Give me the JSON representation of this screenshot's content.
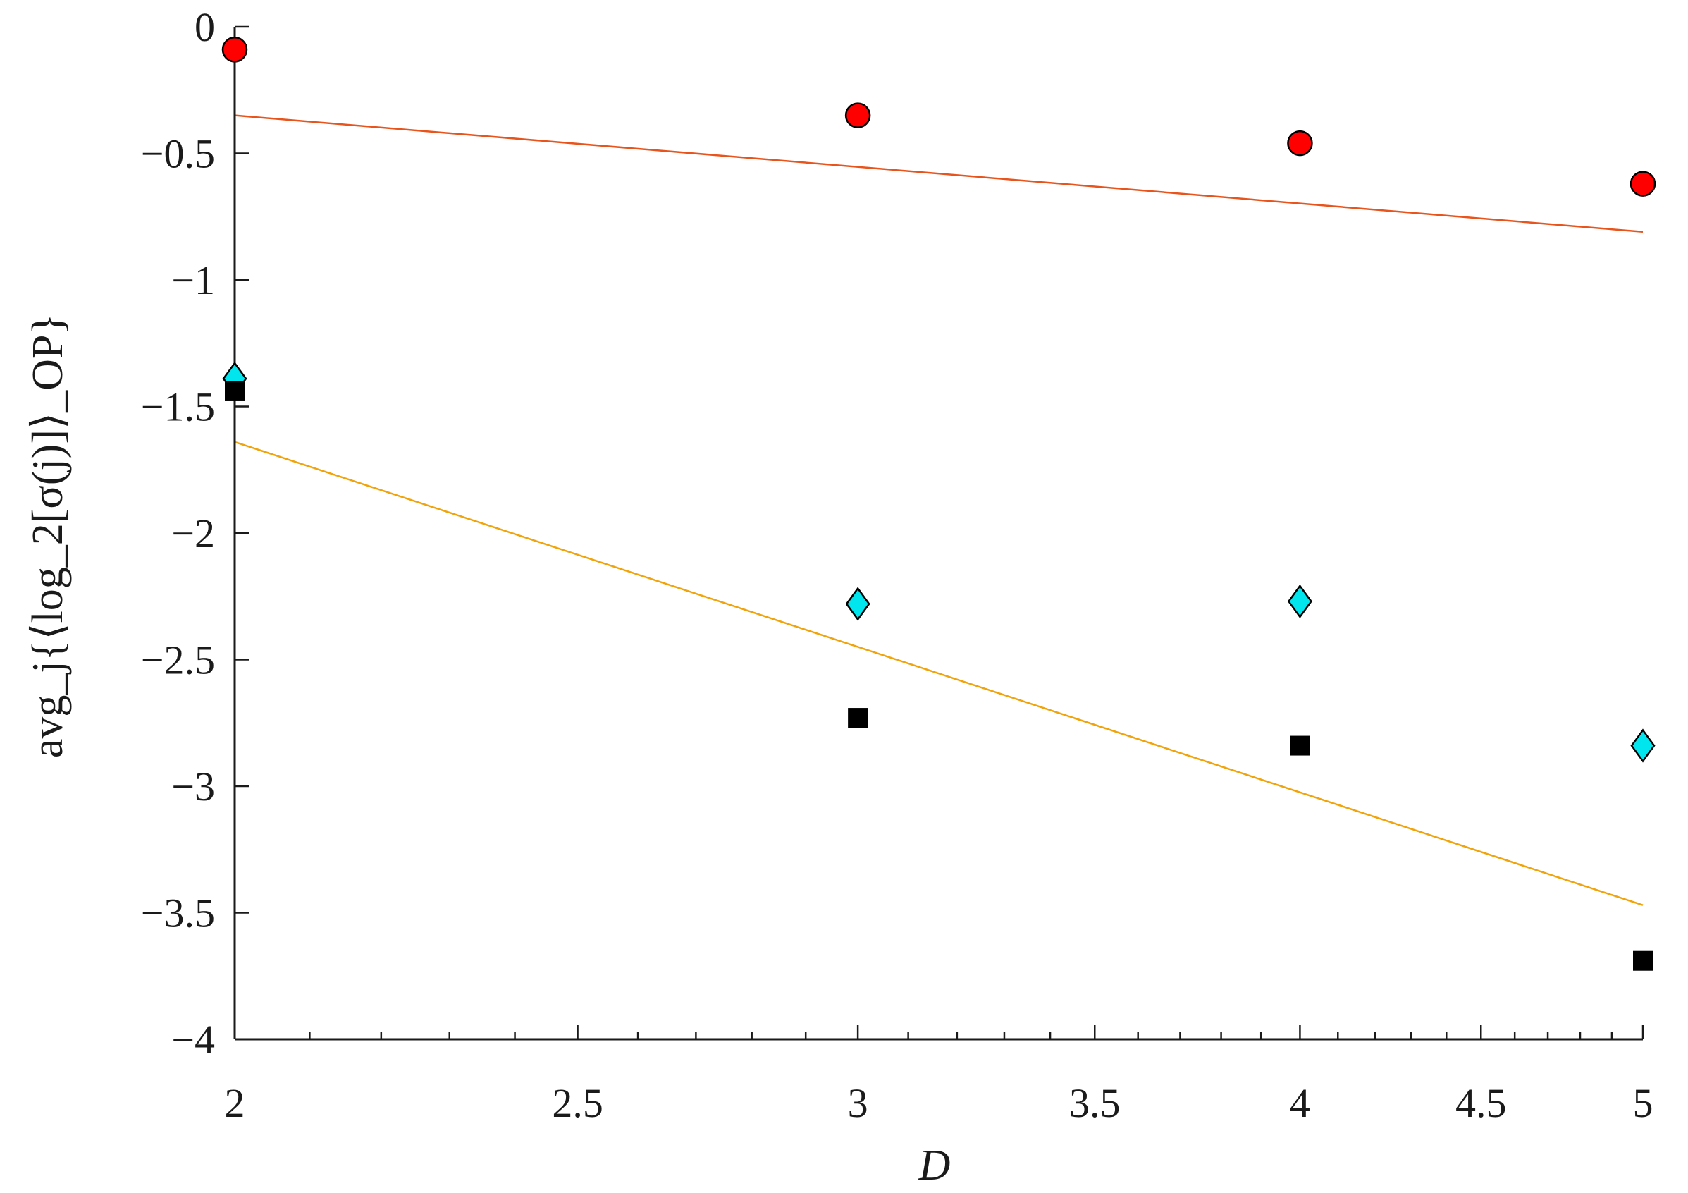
{
  "chart_data": {
    "type": "scatter",
    "xscale": "log",
    "xlim": [
      2,
      5
    ],
    "ylim": [
      -4,
      0
    ],
    "xlabel": "D",
    "ylabel": "avg_j{⟨log_2[σ(j)]⟩_OP}",
    "xticks": [
      2,
      2.5,
      3,
      3.5,
      4,
      4.5,
      5
    ],
    "xtick_labels": [
      "2",
      "2.5",
      "3",
      "3.5",
      "4",
      "4.5",
      "5"
    ],
    "yticks": [
      0,
      -0.5,
      -1,
      -1.5,
      -2,
      -2.5,
      -3,
      -3.5,
      -4
    ],
    "ytick_labels": [
      "0",
      "−0.5",
      "−1",
      "−1.5",
      "−2",
      "−2.5",
      "−3",
      "−3.5",
      "−4"
    ],
    "grid": false,
    "series": [
      {
        "marker": "circle",
        "color": "#ff0000",
        "edge": "#000000",
        "x": [
          2,
          3,
          4,
          5
        ],
        "y": [
          -0.09,
          -0.35,
          -0.46,
          -0.62
        ]
      },
      {
        "marker": "diamond",
        "color": "#00e5ee",
        "edge": "#000000",
        "x": [
          2,
          3,
          4,
          5
        ],
        "y": [
          -1.39,
          -2.28,
          -2.27,
          -2.84
        ]
      },
      {
        "marker": "square",
        "color": "#000000",
        "edge": "#000000",
        "x": [
          2,
          3,
          4,
          5
        ],
        "y": [
          -1.44,
          -2.73,
          -2.84,
          -3.69
        ]
      }
    ],
    "fit_lines": [
      {
        "color": "#e8541c",
        "x": [
          2,
          5
        ],
        "y": [
          -0.35,
          -0.81
        ]
      },
      {
        "color": "#f0a30a",
        "x": [
          2,
          5
        ],
        "y": [
          -1.64,
          -3.47
        ]
      }
    ]
  }
}
